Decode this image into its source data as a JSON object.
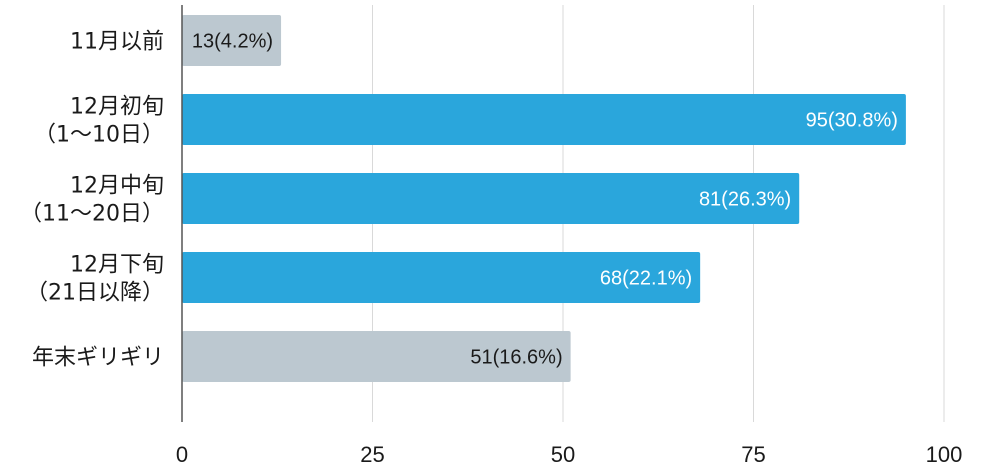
{
  "chart_data": {
    "type": "bar",
    "orientation": "horizontal",
    "categories": [
      [
        "11月以前"
      ],
      [
        "12月初旬",
        "（1～10日）"
      ],
      [
        "12月中旬",
        "（11～20日）"
      ],
      [
        "12月下旬",
        "（21日以降）"
      ],
      [
        "年末ギリギリ"
      ]
    ],
    "values": [
      13,
      95,
      81,
      68,
      51
    ],
    "data_labels": [
      "13(4.2%)",
      "95(30.8%)",
      "81(26.3%)",
      "68(22.1%)",
      "51(16.6%)"
    ],
    "highlight": [
      false,
      true,
      true,
      true,
      false
    ],
    "xlim": [
      0,
      100
    ],
    "xticks": [
      0,
      25,
      50,
      75,
      100
    ],
    "grid": true,
    "legend": "none",
    "colors": {
      "highlight": "#2aa6dc",
      "normal": "#bcc8d0",
      "grid": "#d9d9d9",
      "axis": "#555555",
      "label_on_highlight": "#ffffff",
      "label_on_normal": "#1a1a1a"
    }
  }
}
